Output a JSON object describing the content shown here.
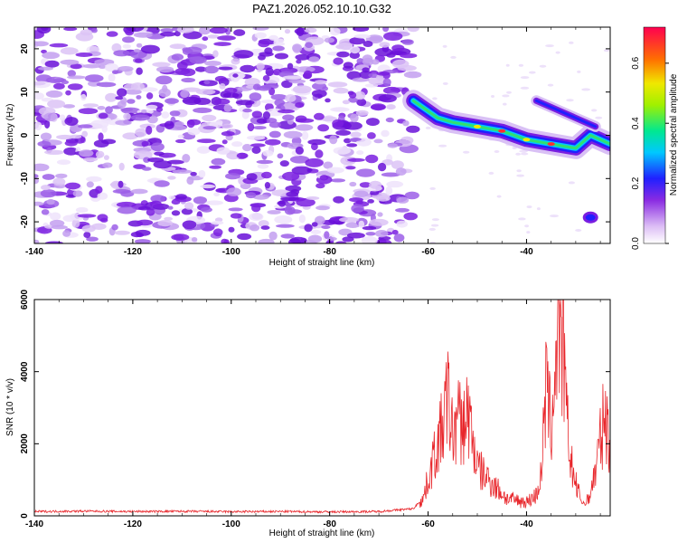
{
  "title": "PAZ1.2026.052.10.10.G32",
  "chart_data": [
    {
      "type": "heatmap",
      "xlabel": "Height of straight line (km)",
      "ylabel": "Frequency (Hz)",
      "xlim": [
        -140,
        -23
      ],
      "ylim": [
        -25,
        25
      ],
      "xticks": [
        -140,
        -120,
        -100,
        -80,
        -60,
        -40
      ],
      "yticks": [
        -20,
        -10,
        0,
        10,
        20
      ],
      "colorbar": {
        "label": "Normalized spectral amplitude",
        "range": [
          0,
          0.72
        ],
        "ticks": [
          0.0,
          0.2,
          0.4,
          0.6
        ]
      },
      "features": {
        "noise_region_x": [
          -140,
          -63
        ],
        "signal_ridge": [
          [
            -63,
            8
          ],
          [
            -58,
            4
          ],
          [
            -55,
            3
          ],
          [
            -50,
            2
          ],
          [
            -45,
            1
          ],
          [
            -40,
            -1
          ],
          [
            -35,
            -2
          ],
          [
            -30,
            -3
          ],
          [
            -27,
            0
          ],
          [
            -23,
            -2
          ]
        ],
        "secondary_ridge": [
          [
            -38,
            8
          ],
          [
            -34,
            6
          ],
          [
            -30,
            4
          ],
          [
            -26,
            2
          ]
        ],
        "isolated_blob": [
          -27,
          -19
        ]
      }
    },
    {
      "type": "line",
      "xlabel": "Height of straight line (km)",
      "ylabel": "SNR (10 * v/v)",
      "xlim": [
        -140,
        -23
      ],
      "ylim": [
        0,
        6000
      ],
      "xticks": [
        -140,
        -120,
        -100,
        -80,
        -60,
        -40
      ],
      "yticks": [
        0,
        2000,
        4000,
        6000
      ],
      "color": "#e8262b",
      "x": [
        -140,
        -130,
        -120,
        -110,
        -100,
        -90,
        -80,
        -70,
        -63,
        -61,
        -59,
        -57,
        -56,
        -55,
        -54,
        -53,
        -52,
        -51,
        -50,
        -48,
        -46,
        -44,
        -42,
        -40,
        -38,
        -37,
        -36,
        -35,
        -34,
        -33.5,
        -33,
        -32.5,
        -32,
        -31,
        -30,
        -29,
        -28,
        -27,
        -26,
        -25,
        -24,
        -23
      ],
      "values": [
        120,
        130,
        120,
        125,
        115,
        120,
        110,
        120,
        200,
        500,
        1600,
        2600,
        3500,
        2300,
        2900,
        2500,
        3100,
        2300,
        1400,
        1100,
        800,
        500,
        450,
        400,
        600,
        1200,
        3800,
        2500,
        4700,
        6000,
        4500,
        5300,
        3000,
        1600,
        900,
        500,
        300,
        700,
        1300,
        2200,
        3000,
        1900
      ]
    }
  ]
}
